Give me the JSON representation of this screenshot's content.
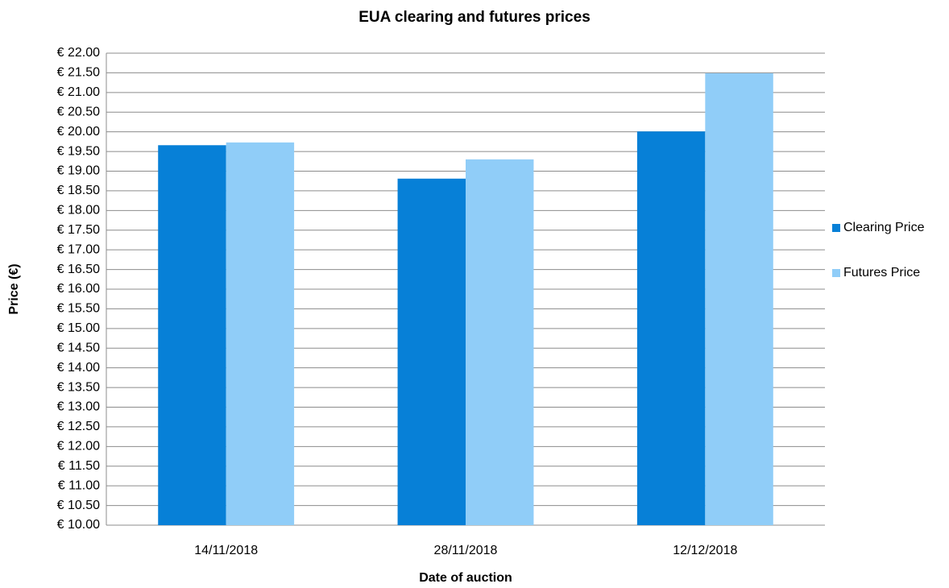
{
  "chart_data": {
    "type": "bar",
    "title": "EUA clearing and futures prices",
    "x_label": "Date of auction",
    "y_label": "Price (€)",
    "categories": [
      "14/11/2018",
      "28/11/2018",
      "12/12/2018"
    ],
    "series": [
      {
        "name": "Clearing Price",
        "color": "#0780d7",
        "values": [
          19.66,
          18.81,
          20.01
        ]
      },
      {
        "name": "Futures Price",
        "color": "#90cdf8",
        "values": [
          19.73,
          19.3,
          21.49
        ]
      }
    ],
    "ylim": [
      10,
      22
    ],
    "yticks": [
      {
        "value": 10,
        "label": "€ 10.00"
      },
      {
        "value": 10.5,
        "label": "€ 10.50"
      },
      {
        "value": 11,
        "label": "€ 11.00"
      },
      {
        "value": 11.5,
        "label": "€ 11.50"
      },
      {
        "value": 12,
        "label": "€ 12.00"
      },
      {
        "value": 12.5,
        "label": "€ 12.50"
      },
      {
        "value": 13,
        "label": "€ 13.00"
      },
      {
        "value": 13.5,
        "label": "€ 13.50"
      },
      {
        "value": 14,
        "label": "€ 14.00"
      },
      {
        "value": 14.5,
        "label": "€ 14.50"
      },
      {
        "value": 15,
        "label": "€ 15.00"
      },
      {
        "value": 15.5,
        "label": "€ 15.50"
      },
      {
        "value": 16,
        "label": "€ 16.00"
      },
      {
        "value": 16.5,
        "label": "€ 16.50"
      },
      {
        "value": 17,
        "label": "€ 17.00"
      },
      {
        "value": 17.5,
        "label": "€ 17.50"
      },
      {
        "value": 18,
        "label": "€ 18.00"
      },
      {
        "value": 18.5,
        "label": "€ 18.50"
      },
      {
        "value": 19,
        "label": "€ 19.00"
      },
      {
        "value": 19.5,
        "label": "€ 19.50"
      },
      {
        "value": 20,
        "label": "€ 20.00"
      },
      {
        "value": 20.5,
        "label": "€ 20.50"
      },
      {
        "value": 21,
        "label": "€ 21.00"
      },
      {
        "value": 21.5,
        "label": "€ 21.50"
      },
      {
        "value": 22,
        "label": "€ 22.00"
      }
    ],
    "grid": true,
    "legend": "right"
  }
}
